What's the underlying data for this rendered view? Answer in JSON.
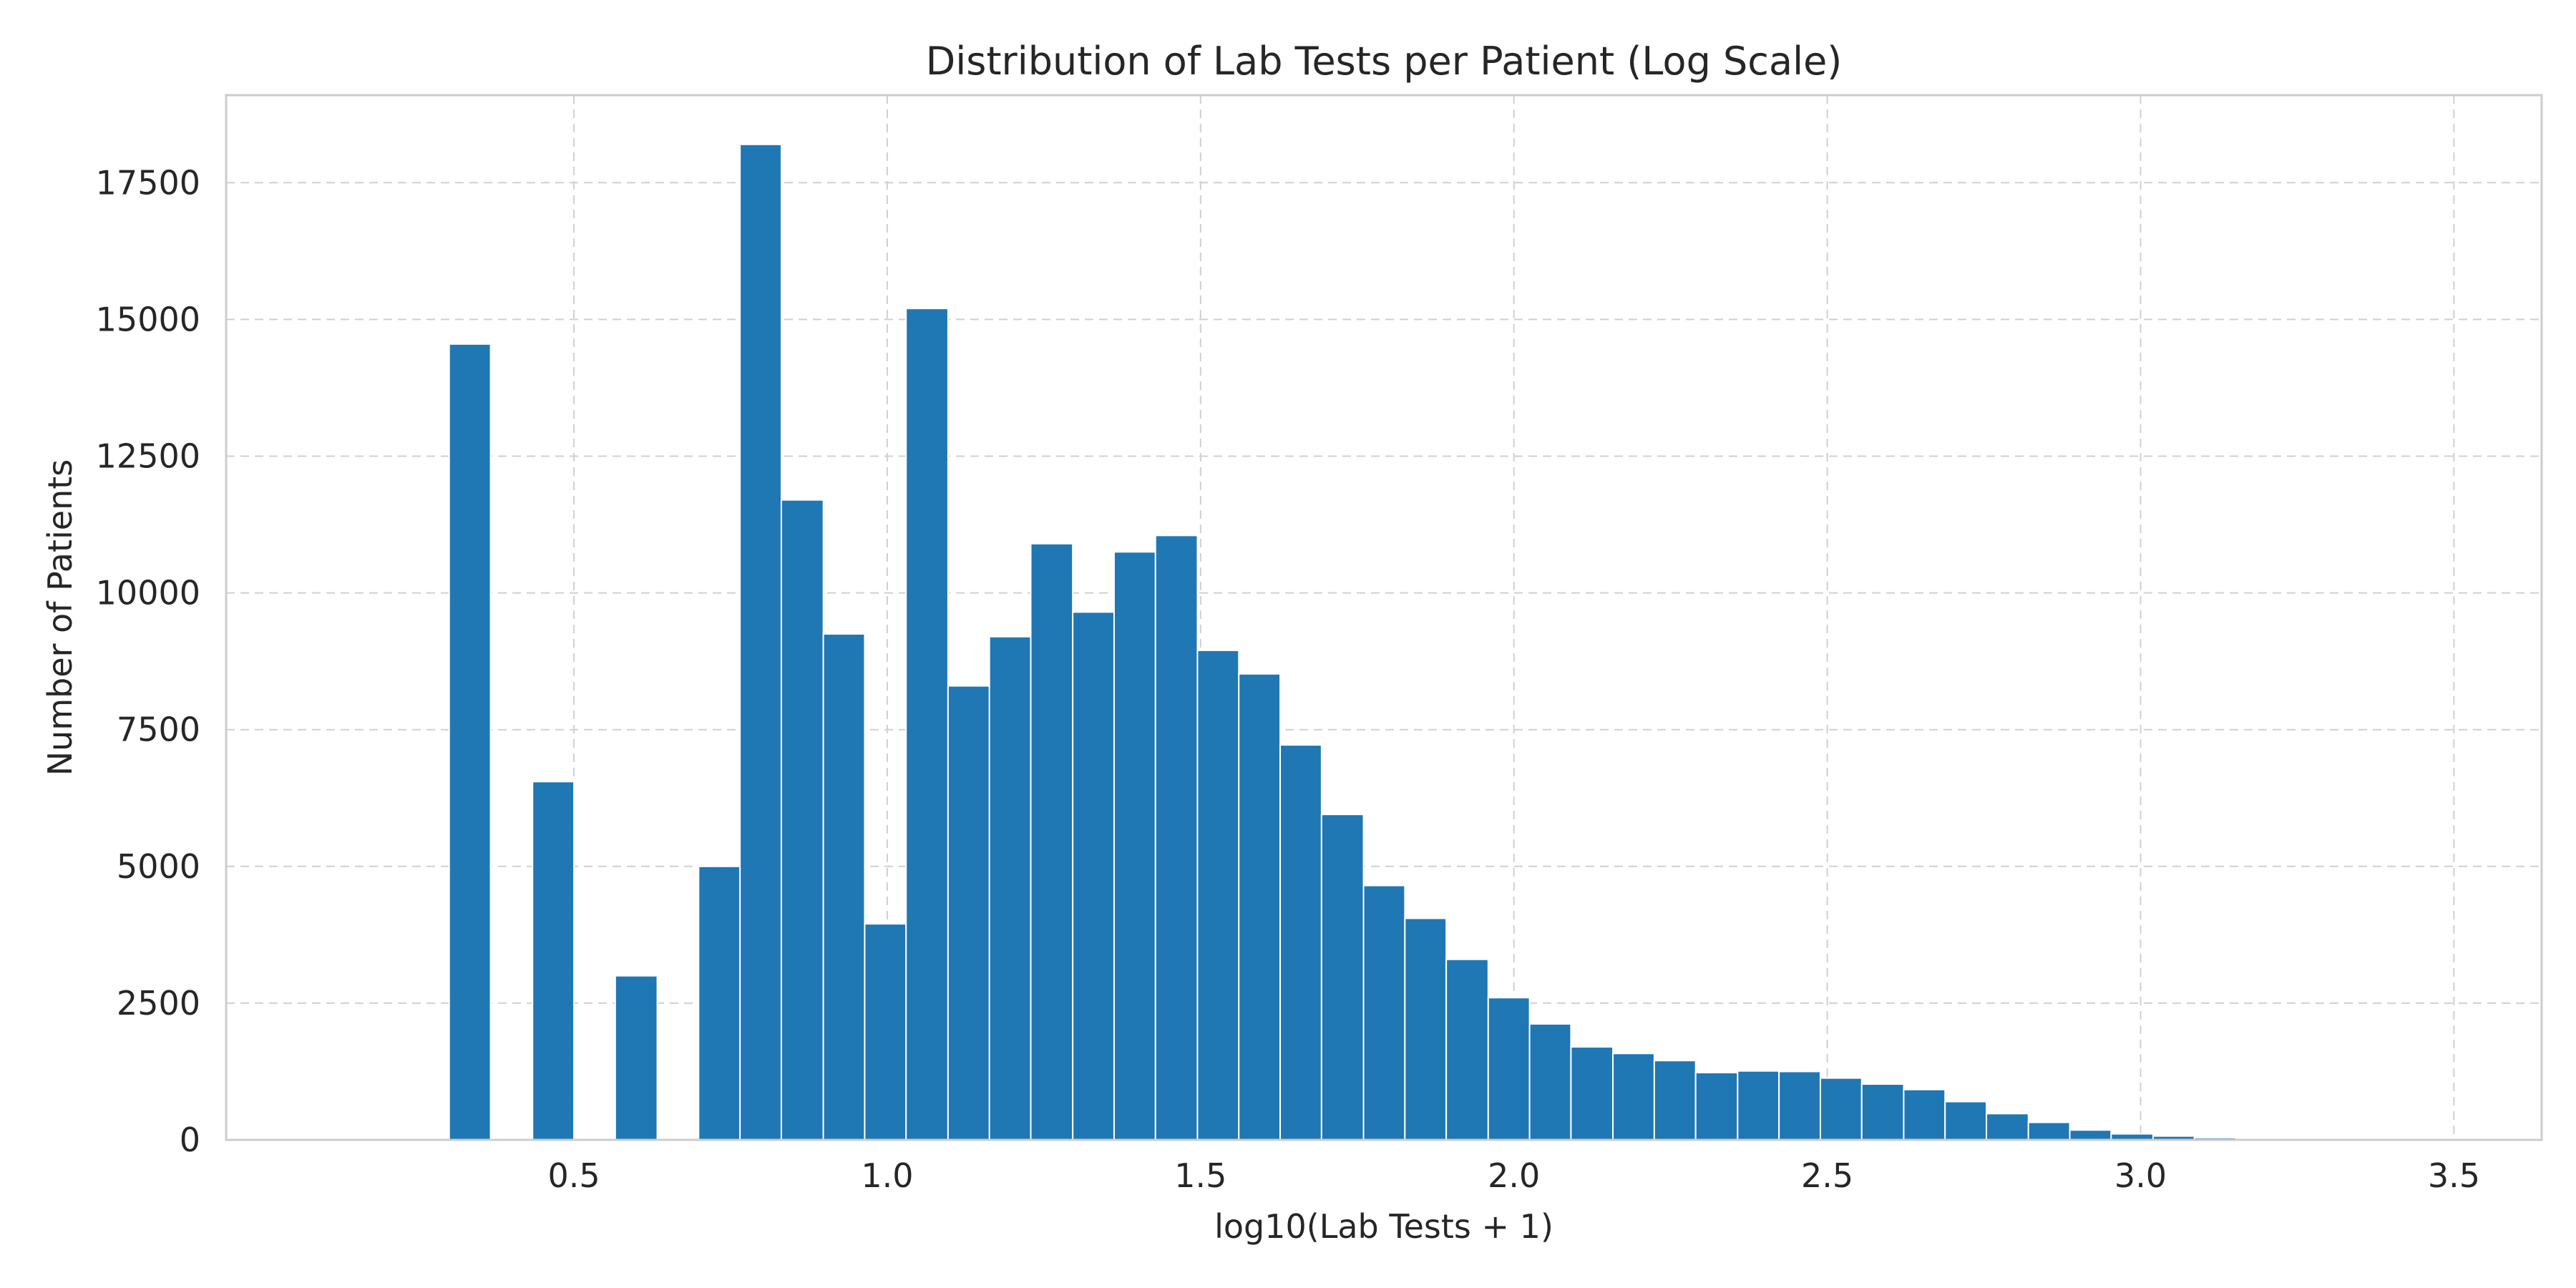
{
  "chart_data": {
    "type": "bar",
    "title": "Distribution of Lab Tests per Patient (Log Scale)",
    "xlabel": "log10(Lab Tests + 1)",
    "ylabel": "Number of Patients",
    "xlim": [
      -0.055,
      3.64
    ],
    "ylim": [
      0,
      19100
    ],
    "xticks": [
      0.5,
      1.0,
      1.5,
      2.0,
      2.5,
      3.0,
      3.5
    ],
    "xtick_labels": [
      "0.5",
      "1.0",
      "1.5",
      "2.0",
      "2.5",
      "3.0",
      "3.5"
    ],
    "yticks": [
      0,
      2500,
      5000,
      7500,
      10000,
      12500,
      15000,
      17500
    ],
    "ytick_labels": [
      "0",
      "2500",
      "5000",
      "7500",
      "10000",
      "12500",
      "15000",
      "17500"
    ],
    "bin_edges": [
      0.301,
      0.367,
      0.434,
      0.5,
      0.566,
      0.633,
      0.699,
      0.765,
      0.831,
      0.898,
      0.964,
      1.03,
      1.097,
      1.163,
      1.229,
      1.296,
      1.362,
      1.428,
      1.495,
      1.561,
      1.627,
      1.693,
      1.76,
      1.826,
      1.892,
      1.959,
      2.025,
      2.091,
      2.158,
      2.224,
      2.29,
      2.357,
      2.423,
      2.489,
      2.555,
      2.622,
      2.688,
      2.754,
      2.821,
      2.887,
      2.953,
      3.02,
      3.086,
      3.152,
      3.219,
      3.285,
      3.351,
      3.418,
      3.484,
      3.55,
      3.617
    ],
    "values": [
      14550,
      0,
      6550,
      0,
      3000,
      0,
      5000,
      18200,
      11700,
      9250,
      3950,
      15200,
      8300,
      9200,
      10900,
      9650,
      10750,
      11050,
      8950,
      8520,
      7220,
      5950,
      4650,
      4050,
      3300,
      2600,
      2120,
      1700,
      1580,
      1450,
      1230,
      1260,
      1250,
      1130,
      1020,
      920,
      700,
      480,
      320,
      180,
      110,
      70,
      40,
      20,
      10,
      5,
      3,
      2,
      1,
      1
    ],
    "bar_color": "#1f77b4",
    "grid": true
  }
}
